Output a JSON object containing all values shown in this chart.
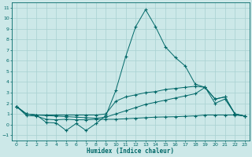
{
  "xlabel": "Humidex (Indice chaleur)",
  "bg_color": "#cce8e8",
  "line_color": "#006868",
  "grid_color": "#a8d0d0",
  "x": [
    0,
    1,
    2,
    3,
    4,
    5,
    6,
    7,
    8,
    9,
    10,
    11,
    12,
    13,
    14,
    15,
    16,
    17,
    18,
    19,
    20,
    21,
    22,
    23
  ],
  "line1": [
    1.7,
    1.0,
    0.9,
    0.2,
    0.15,
    -0.55,
    0.1,
    -0.55,
    0.1,
    0.85,
    3.2,
    6.4,
    9.2,
    10.8,
    9.2,
    7.3,
    6.3,
    5.5,
    3.8,
    3.5,
    2.0,
    2.4,
    1.0,
    0.8
  ],
  "line2": [
    1.7,
    1.0,
    0.9,
    0.9,
    0.9,
    0.9,
    0.9,
    0.9,
    0.9,
    1.0,
    2.2,
    2.6,
    2.8,
    3.0,
    3.1,
    3.3,
    3.4,
    3.5,
    3.6,
    3.5,
    2.4,
    2.6,
    1.0,
    0.8
  ],
  "line3": [
    1.7,
    1.0,
    0.9,
    0.85,
    0.8,
    0.75,
    0.7,
    0.65,
    0.6,
    0.7,
    1.0,
    1.3,
    1.6,
    1.9,
    2.1,
    2.3,
    2.5,
    2.7,
    2.9,
    3.5,
    2.4,
    2.6,
    1.0,
    0.8
  ],
  "line4": [
    1.7,
    0.85,
    0.8,
    0.5,
    0.45,
    0.5,
    0.45,
    0.45,
    0.5,
    0.5,
    0.5,
    0.55,
    0.6,
    0.65,
    0.7,
    0.72,
    0.74,
    0.78,
    0.82,
    0.9,
    0.9,
    0.9,
    0.9,
    0.8
  ],
  "ylim": [
    -1.5,
    11.5
  ],
  "yticks": [
    -1,
    0,
    1,
    2,
    3,
    4,
    5,
    6,
    7,
    8,
    9,
    10,
    11
  ],
  "xlim": [
    -0.5,
    23.5
  ],
  "xticks": [
    0,
    1,
    2,
    3,
    4,
    5,
    6,
    7,
    8,
    9,
    10,
    11,
    12,
    13,
    14,
    15,
    16,
    17,
    18,
    19,
    20,
    21,
    22,
    23
  ]
}
